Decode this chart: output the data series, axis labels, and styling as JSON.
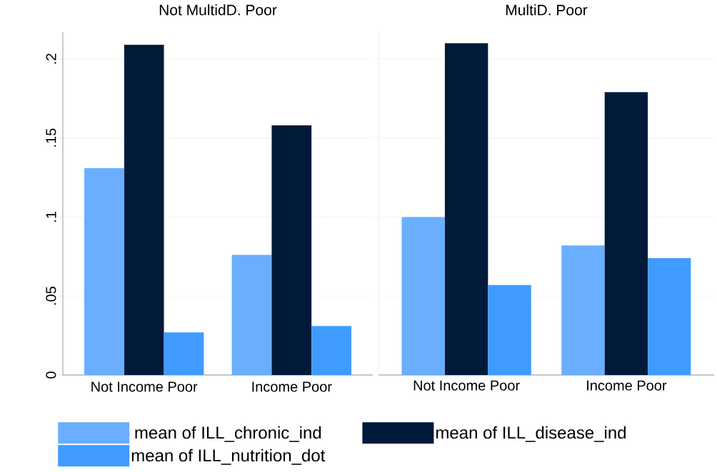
{
  "chart_data": [
    {
      "type": "bar",
      "title": "Not MultidD. Poor",
      "categories": [
        "Not Income Poor",
        "Income Poor"
      ],
      "series": [
        {
          "name": "mean of ILL_chronic_ind",
          "color": "#6aaeff",
          "values": [
            0.131,
            0.076
          ]
        },
        {
          "name": "mean of ILL_disease_ind",
          "color": "#001a3a",
          "values": [
            0.209,
            0.158
          ]
        },
        {
          "name": "mean of ILL_nutrition_dot",
          "color": "#3f9bff",
          "values": [
            0.027,
            0.031
          ]
        }
      ],
      "ylim": [
        0,
        0.217
      ],
      "yticks": [
        0,
        {
          "value": 0.05,
          "label": ".05"
        },
        {
          "value": 0.1,
          "label": ".1"
        },
        {
          "value": 0.15,
          "label": ".15"
        },
        {
          "value": 0.2,
          "label": ".2"
        }
      ],
      "grid": "y",
      "legend": "bottom"
    },
    {
      "type": "bar",
      "title": "MultiD. Poor",
      "categories": [
        "Not Income Poor",
        "Income Poor"
      ],
      "series": [
        {
          "color": "#6aaeff",
          "values": [
            0.1,
            0.082
          ]
        },
        {
          "color": "#001a3a",
          "values": [
            0.21,
            0.179
          ]
        },
        {
          "color": "#3f9bff",
          "values": [
            0.057,
            0.074
          ]
        }
      ],
      "ylim": [
        0,
        0.217
      ],
      "yticks": [
        0,
        0.05,
        0.1,
        0.15,
        0.2
      ],
      "grid": "y",
      "tick_labels": "x"
    }
  ]
}
